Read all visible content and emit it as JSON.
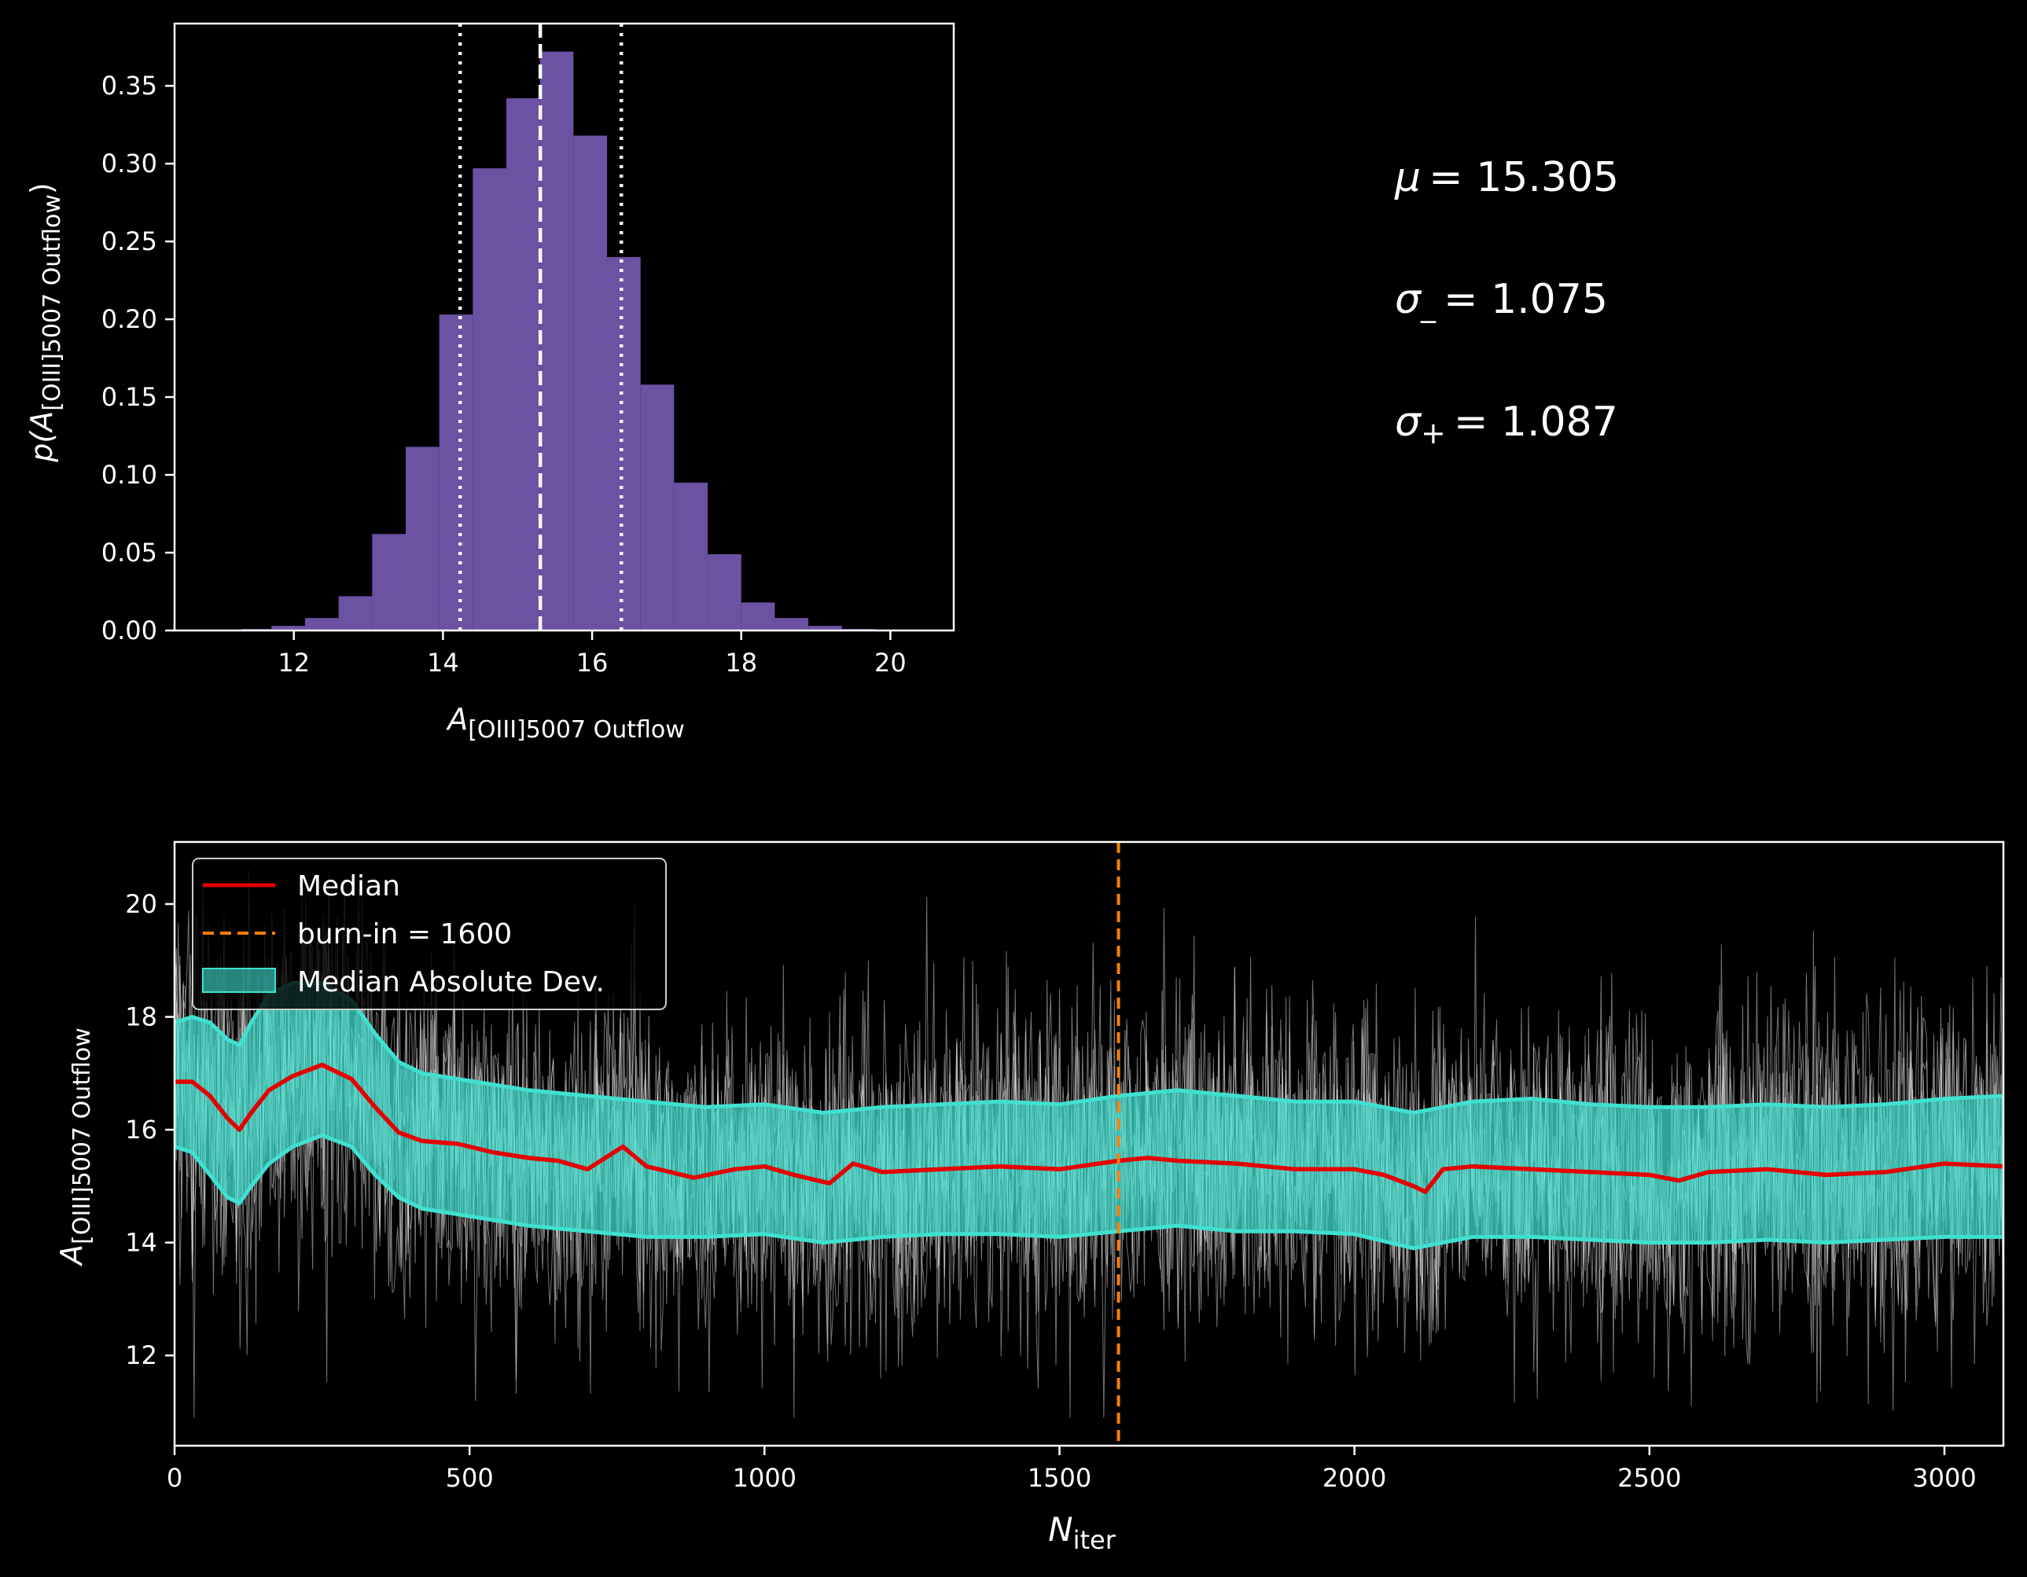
{
  "chart_data": [
    {
      "type": "bar",
      "panel": "histogram",
      "xlabel": {
        "main": "A",
        "sub": "[OIII]5007 Outflow"
      },
      "ylabel": {
        "pre": "p(",
        "main": "A",
        "sub": "[OIII]5007 Outflow",
        "post": ")"
      },
      "xlim": [
        10.4,
        20.85
      ],
      "ylim": [
        0,
        0.39
      ],
      "xticks": [
        12,
        14,
        16,
        18,
        20
      ],
      "yticks": [
        0.0,
        0.05,
        0.1,
        0.15,
        0.2,
        0.25,
        0.3,
        0.35
      ],
      "ytick_labels": [
        "0.00",
        "0.05",
        "0.10",
        "0.15",
        "0.20",
        "0.25",
        "0.30",
        "0.35"
      ],
      "bar_color": "#6b52a3",
      "bin_edges": [
        11.3,
        11.7,
        12.15,
        12.6,
        13.05,
        13.5,
        13.95,
        14.4,
        14.85,
        15.3,
        15.75,
        16.2,
        16.65,
        17.1,
        17.55,
        18.0,
        18.45,
        18.9,
        19.35,
        19.8,
        20.25
      ],
      "values": [
        0.001,
        0.003,
        0.008,
        0.022,
        0.062,
        0.118,
        0.203,
        0.297,
        0.342,
        0.372,
        0.318,
        0.24,
        0.158,
        0.095,
        0.049,
        0.018,
        0.008,
        0.003,
        0.001,
        0.0005
      ],
      "median": 15.305,
      "lower": 14.23,
      "upper": 16.392
    },
    {
      "type": "line",
      "panel": "trace",
      "xlabel": {
        "main": "N",
        "sub": "iter"
      },
      "ylabel": {
        "main": "A",
        "sub": "[OIII]5007 Outflow"
      },
      "xlim": [
        0,
        3100
      ],
      "ylim": [
        10.4,
        21.1
      ],
      "xticks": [
        0,
        500,
        1000,
        1500,
        2000,
        2500,
        3000
      ],
      "yticks": [
        12,
        14,
        16,
        18,
        20
      ],
      "burn_in": 1600,
      "median_series": {
        "x": [
          0,
          30,
          60,
          90,
          110,
          130,
          160,
          200,
          250,
          300,
          340,
          380,
          420,
          480,
          540,
          600,
          650,
          700,
          760,
          800,
          880,
          950,
          1000,
          1050,
          1110,
          1150,
          1200,
          1300,
          1400,
          1500,
          1600,
          1650,
          1700,
          1800,
          1900,
          2000,
          2050,
          2100,
          2120,
          2150,
          2200,
          2300,
          2400,
          2500,
          2550,
          2600,
          2700,
          2800,
          2900,
          3000,
          3100
        ],
        "y": [
          16.85,
          16.85,
          16.6,
          16.2,
          16.0,
          16.3,
          16.7,
          16.95,
          17.15,
          16.9,
          16.4,
          15.95,
          15.8,
          15.75,
          15.6,
          15.5,
          15.45,
          15.3,
          15.7,
          15.35,
          15.15,
          15.3,
          15.35,
          15.2,
          15.05,
          15.4,
          15.25,
          15.3,
          15.35,
          15.3,
          15.45,
          15.5,
          15.45,
          15.4,
          15.3,
          15.3,
          15.2,
          15.0,
          14.9,
          15.3,
          15.35,
          15.3,
          15.25,
          15.2,
          15.1,
          15.25,
          15.3,
          15.2,
          15.25,
          15.4,
          15.35
        ]
      },
      "mad_band": {
        "x": [
          0,
          30,
          60,
          90,
          110,
          130,
          160,
          200,
          250,
          300,
          340,
          380,
          420,
          480,
          540,
          600,
          700,
          800,
          900,
          1000,
          1100,
          1200,
          1300,
          1400,
          1500,
          1600,
          1700,
          1800,
          1900,
          2000,
          2100,
          2200,
          2300,
          2400,
          2500,
          2600,
          2700,
          2800,
          2900,
          3000,
          3100
        ],
        "lower": [
          15.7,
          15.6,
          15.2,
          14.8,
          14.7,
          15.0,
          15.4,
          15.7,
          15.9,
          15.7,
          15.2,
          14.8,
          14.6,
          14.5,
          14.4,
          14.3,
          14.2,
          14.1,
          14.1,
          14.15,
          14.0,
          14.1,
          14.15,
          14.15,
          14.1,
          14.2,
          14.3,
          14.2,
          14.2,
          14.15,
          13.9,
          14.1,
          14.1,
          14.05,
          14.0,
          14.0,
          14.05,
          14.0,
          14.05,
          14.1,
          14.1
        ],
        "upper": [
          17.9,
          18.0,
          17.9,
          17.6,
          17.5,
          17.9,
          18.4,
          18.6,
          18.6,
          18.3,
          17.7,
          17.2,
          17.0,
          16.9,
          16.8,
          16.7,
          16.6,
          16.5,
          16.4,
          16.45,
          16.3,
          16.4,
          16.45,
          16.5,
          16.45,
          16.6,
          16.7,
          16.6,
          16.5,
          16.5,
          16.3,
          16.5,
          16.55,
          16.45,
          16.4,
          16.4,
          16.45,
          16.4,
          16.45,
          16.55,
          16.6
        ]
      },
      "walker_spread": 1.35,
      "colors": {
        "median": "#e40000",
        "band": "#40e0d0",
        "burn_in": "#ff7f0e",
        "walkers": "#ffffff"
      },
      "legend": [
        {
          "label": "Median",
          "style": "line"
        },
        {
          "label": "burn-in = 1600",
          "style": "dashed"
        },
        {
          "label": "Median Absolute Dev.",
          "style": "patch"
        }
      ],
      "legend_position": "upper-left"
    }
  ],
  "stats": {
    "mu": {
      "symbol": "μ",
      "sub": "",
      "value": "= 15.305"
    },
    "sigma_minus": {
      "symbol": "σ",
      "sub": "_",
      "value": "= 1.075"
    },
    "sigma_plus": {
      "symbol": "σ",
      "sub": "+",
      "value": "= 1.087"
    }
  }
}
